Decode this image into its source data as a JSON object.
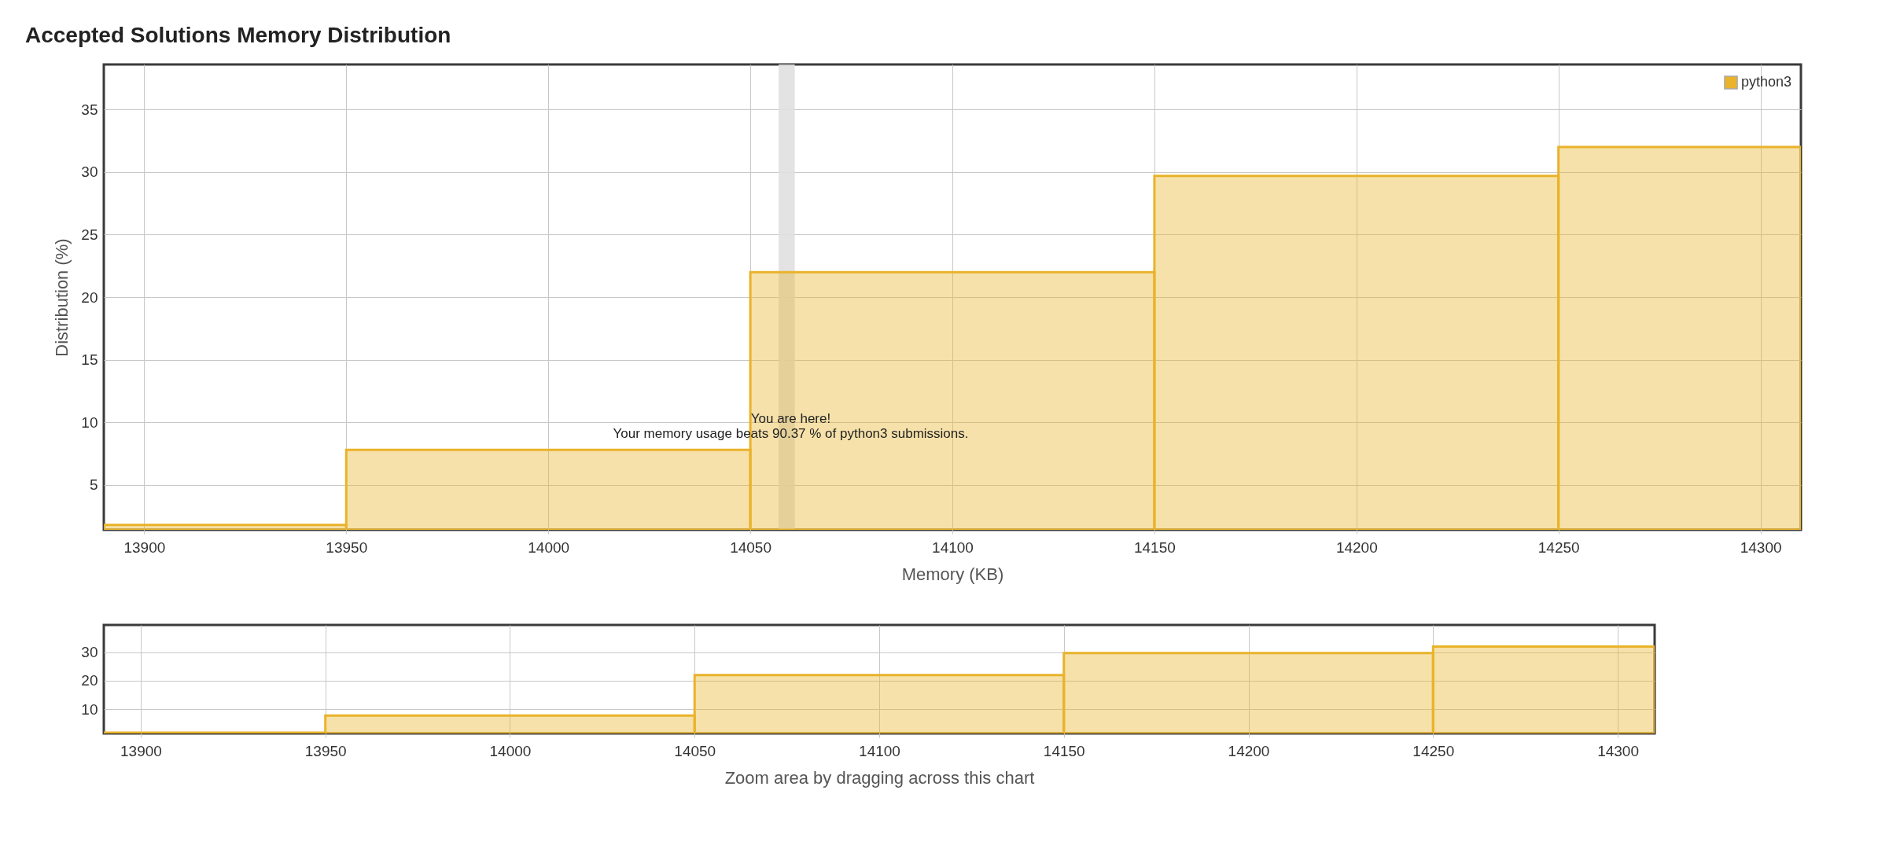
{
  "chart_data": [
    {
      "type": "histogram",
      "title": "Accepted Solutions Memory Distribution",
      "xlabel": "Memory (KB)",
      "ylabel": "Distribution (%)",
      "bins": [
        13890,
        13950,
        14050,
        14150,
        14250,
        14310
      ],
      "series": [
        {
          "name": "python3",
          "color": "#e9b32a",
          "values": [
            1.8,
            7.8,
            22.0,
            29.7,
            32.0
          ]
        }
      ],
      "xlim": [
        13890,
        14310
      ],
      "xticks": [
        13900,
        13950,
        14000,
        14050,
        14100,
        14150,
        14200,
        14250,
        14300
      ],
      "ylim": [
        1.4,
        38.6
      ],
      "yticks": [
        5,
        10,
        15,
        20,
        25,
        30,
        35
      ],
      "grid": true,
      "legend": "top right",
      "bands": [
        {
          "axis": "x",
          "from": 14057,
          "to": 14061,
          "color": "#e0e0e0"
        }
      ],
      "annotations": [
        {
          "text": "You are here!\nYour memory usage beats 90.37 % of python3 submissions.",
          "x": 14060,
          "y": 7.8
        }
      ]
    },
    {
      "type": "histogram",
      "xlabel": "Zoom area by dragging across this chart",
      "bins": [
        13890,
        13950,
        14050,
        14150,
        14250,
        14310
      ],
      "series": [
        {
          "color": "#e9b32a",
          "values": [
            1.8,
            7.8,
            22.0,
            29.7,
            32.0
          ]
        }
      ],
      "xlim": [
        13890,
        14310
      ],
      "xticks": [
        13900,
        13950,
        14000,
        14050,
        14100,
        14150,
        14200,
        14250,
        14300
      ],
      "ylim": [
        1.5,
        39.6
      ],
      "yticks": [
        10,
        20,
        30
      ],
      "grid": true
    }
  ]
}
